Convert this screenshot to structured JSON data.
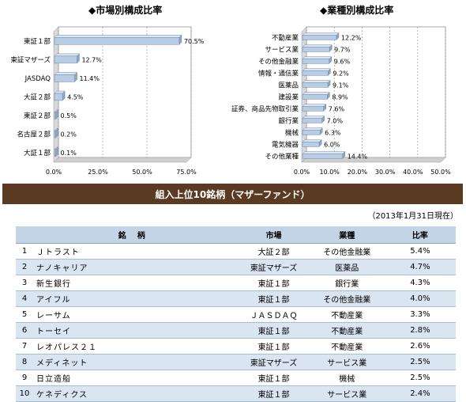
{
  "chart_data": [
    {
      "type": "bar",
      "orientation": "horizontal",
      "title": "◆市場別構成比率",
      "categories": [
        "東証１部",
        "東証マザーズ",
        "JASDAQ",
        "大証２部",
        "東証２部",
        "名古屋２部",
        "大証１部"
      ],
      "values": [
        70.5,
        12.7,
        11.4,
        4.5,
        0.5,
        0.2,
        0.1
      ],
      "value_labels": [
        "70.5%",
        "12.7%",
        "11.4%",
        "4.5%",
        "0.5%",
        "0.2%",
        "0.1%"
      ],
      "xlim": [
        0,
        75
      ],
      "xticks": [
        "0.0%",
        "25.0%",
        "50.0%",
        "75.0%"
      ],
      "grid": true,
      "bar_color": "#b8cce4"
    },
    {
      "type": "bar",
      "orientation": "horizontal",
      "title": "◆業種別構成比率",
      "categories": [
        "不動産業",
        "サービス業",
        "その他金融業",
        "情報・通信業",
        "医薬品",
        "建設業",
        "証券、商品先物取引業",
        "銀行業",
        "機械",
        "電気機器",
        "その他業種"
      ],
      "values": [
        12.2,
        9.7,
        9.6,
        9.2,
        9.1,
        8.9,
        7.6,
        7.0,
        6.3,
        6.0,
        14.4
      ],
      "value_labels": [
        "12.2%",
        "9.7%",
        "9.6%",
        "9.2%",
        "9.1%",
        "8.9%",
        "7.6%",
        "7.0%",
        "6.3%",
        "6.0%",
        "14.4%"
      ],
      "xlim": [
        0,
        50
      ],
      "xticks": [
        "0.0%",
        "10.0%",
        "20.0%",
        "30.0%",
        "40.0%",
        "50.0%"
      ],
      "grid": true,
      "bar_color": "#b8cce4"
    }
  ],
  "banner": {
    "title": "組入上位10銘柄（マザーファンド）"
  },
  "table": {
    "as_of": "（2013年1月31日現在）",
    "headers": {
      "name": "銘柄",
      "market": "市場",
      "sector": "業種",
      "weight": "比率"
    },
    "rows": [
      {
        "rank": "1",
        "name": "Ｊトラスト",
        "market": "大証２部",
        "sector": "その他金融業",
        "weight": "5.4%"
      },
      {
        "rank": "2",
        "name": "ナノキャリア",
        "market": "東証マザーズ",
        "sector": "医薬品",
        "weight": "4.7%"
      },
      {
        "rank": "3",
        "name": "新生銀行",
        "market": "東証１部",
        "sector": "銀行業",
        "weight": "4.3%"
      },
      {
        "rank": "4",
        "name": "アイフル",
        "market": "東証１部",
        "sector": "その他金融業",
        "weight": "4.0%"
      },
      {
        "rank": "5",
        "name": "レーサム",
        "market": "ＪＡＳＤＡＱ",
        "sector": "不動産業",
        "weight": "3.3%"
      },
      {
        "rank": "6",
        "name": "トーセイ",
        "market": "東証１部",
        "sector": "不動産業",
        "weight": "2.8%"
      },
      {
        "rank": "7",
        "name": "レオパレス２１",
        "market": "東証１部",
        "sector": "不動産業",
        "weight": "2.6%"
      },
      {
        "rank": "8",
        "name": "メディネット",
        "market": "東証マザーズ",
        "sector": "サービス業",
        "weight": "2.5%"
      },
      {
        "rank": "9",
        "name": "日立造船",
        "market": "東証１部",
        "sector": "機械",
        "weight": "2.5%"
      },
      {
        "rank": "10",
        "name": "ケネディクス",
        "market": "東証１部",
        "sector": "サービス業",
        "weight": "2.4%"
      }
    ]
  }
}
